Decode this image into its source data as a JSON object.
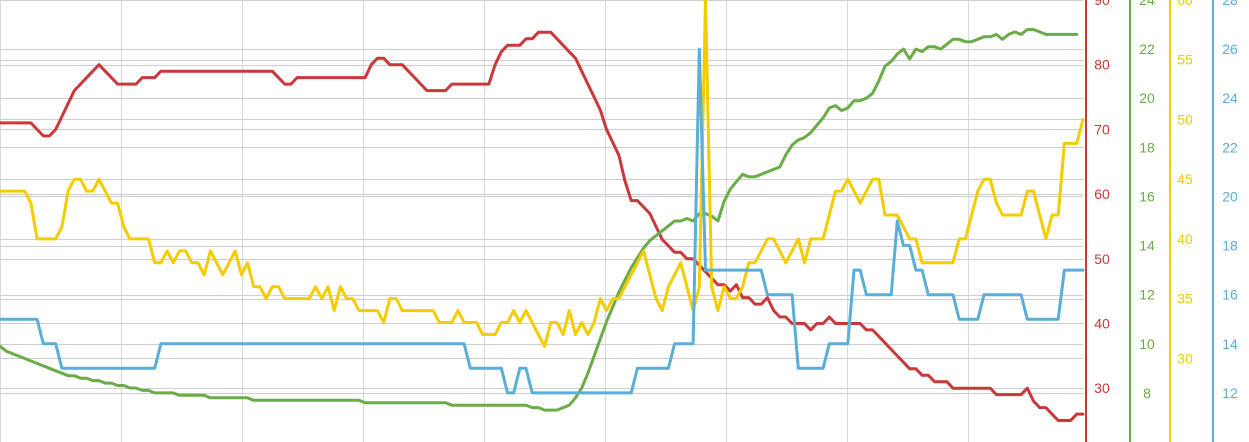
{
  "chart_data": {
    "type": "line",
    "title": "",
    "xlabel": "",
    "grid": true,
    "legend": "none",
    "x_count": 176,
    "axes": [
      {
        "id": "red",
        "color": "#c9383a",
        "ylim": [
          21.68,
          90
        ],
        "ticks": [
          30,
          40,
          50,
          60,
          70,
          80,
          90
        ]
      },
      {
        "id": "green",
        "color": "#6aac46",
        "ylim": [
          6,
          24
        ],
        "ticks": [
          8,
          10,
          12,
          14,
          16,
          18,
          20,
          22,
          24
        ]
      },
      {
        "id": "yellow",
        "color": "#f5cc00",
        "ylim": [
          23,
          60
        ],
        "ticks": [
          30,
          35,
          40,
          45,
          50,
          55,
          60
        ]
      },
      {
        "id": "blue",
        "color": "#5aaed8",
        "ylim": [
          10,
          28
        ],
        "ticks": [
          12,
          14,
          16,
          18,
          20,
          22,
          24,
          26,
          28
        ]
      }
    ],
    "series": [
      {
        "axis": "red",
        "color": "#c9383a",
        "values": [
          71,
          71,
          71,
          71,
          71,
          71,
          70,
          69,
          69,
          70,
          72,
          74,
          76,
          77,
          78,
          79,
          80,
          79,
          78,
          77,
          77,
          77,
          77,
          78,
          78,
          78,
          79,
          79,
          79,
          79,
          79,
          79,
          79,
          79,
          79,
          79,
          79,
          79,
          79,
          79,
          79,
          79,
          79,
          79,
          79,
          78,
          77,
          77,
          78,
          78,
          78,
          78,
          78,
          78,
          78,
          78,
          78,
          78,
          78,
          78,
          80,
          81,
          81,
          80,
          80,
          80,
          79,
          78,
          77,
          76,
          76,
          76,
          76,
          77,
          77,
          77,
          77,
          77,
          77,
          77,
          80,
          82,
          83,
          83,
          83,
          84,
          84,
          85,
          85,
          85,
          84,
          83,
          82,
          81,
          79,
          77,
          75,
          73,
          70,
          68,
          66,
          62,
          59,
          59,
          58,
          57,
          55,
          53,
          52,
          51,
          51,
          50,
          50,
          49,
          48,
          47,
          46,
          46,
          45,
          46,
          44,
          44,
          43,
          43,
          44,
          42,
          41,
          41,
          40,
          40,
          40,
          39,
          40,
          40,
          41,
          40,
          40,
          40,
          40,
          40,
          39,
          39,
          38,
          37,
          36,
          35,
          34,
          33,
          33,
          32,
          32,
          31,
          31,
          31,
          30,
          30,
          30,
          30,
          30,
          30,
          30,
          29,
          29,
          29,
          29,
          29,
          30,
          28,
          27,
          27,
          26,
          25,
          25,
          25,
          26,
          26
        ]
      },
      {
        "axis": "green",
        "color": "#6aac46",
        "values": [
          9.9,
          9.7,
          9.6,
          9.5,
          9.4,
          9.3,
          9.2,
          9.1,
          9.0,
          8.9,
          8.8,
          8.7,
          8.7,
          8.6,
          8.6,
          8.5,
          8.5,
          8.4,
          8.4,
          8.3,
          8.3,
          8.2,
          8.2,
          8.1,
          8.1,
          8.0,
          8.0,
          8.0,
          8.0,
          7.9,
          7.9,
          7.9,
          7.9,
          7.9,
          7.8,
          7.8,
          7.8,
          7.8,
          7.8,
          7.8,
          7.8,
          7.7,
          7.7,
          7.7,
          7.7,
          7.7,
          7.7,
          7.7,
          7.7,
          7.7,
          7.7,
          7.7,
          7.7,
          7.7,
          7.7,
          7.7,
          7.7,
          7.7,
          7.7,
          7.6,
          7.6,
          7.6,
          7.6,
          7.6,
          7.6,
          7.6,
          7.6,
          7.6,
          7.6,
          7.6,
          7.6,
          7.6,
          7.6,
          7.5,
          7.5,
          7.5,
          7.5,
          7.5,
          7.5,
          7.5,
          7.5,
          7.5,
          7.5,
          7.5,
          7.5,
          7.5,
          7.4,
          7.4,
          7.3,
          7.3,
          7.3,
          7.4,
          7.5,
          7.8,
          8.2,
          8.8,
          9.5,
          10.2,
          10.9,
          11.5,
          12.1,
          12.6,
          13.1,
          13.5,
          13.9,
          14.2,
          14.4,
          14.6,
          14.8,
          15.0,
          15.0,
          15.1,
          15.0,
          15.3,
          15.3,
          15.2,
          15.0,
          15.8,
          16.3,
          16.6,
          16.9,
          16.8,
          16.8,
          16.9,
          17.0,
          17.1,
          17.2,
          17.7,
          18.1,
          18.3,
          18.4,
          18.6,
          18.9,
          19.2,
          19.6,
          19.7,
          19.5,
          19.6,
          19.9,
          19.9,
          20.0,
          20.2,
          20.7,
          21.3,
          21.5,
          21.8,
          22.0,
          21.6,
          22.0,
          21.9,
          22.1,
          22.1,
          22.0,
          22.2,
          22.4,
          22.4,
          22.3,
          22.3,
          22.4,
          22.5,
          22.5,
          22.6,
          22.4,
          22.6,
          22.7,
          22.6,
          22.8,
          22.8,
          22.7,
          22.6,
          22.6,
          22.6,
          22.6,
          22.6,
          22.6
        ]
      },
      {
        "axis": "yellow",
        "color": "#f5cc00",
        "values": [
          44,
          44,
          44,
          44,
          44,
          43,
          40,
          40,
          40,
          40,
          41,
          44,
          45,
          45,
          44,
          44,
          45,
          44,
          43,
          43,
          41,
          40,
          40,
          40,
          40,
          38,
          38,
          39,
          38,
          39,
          39,
          38,
          38,
          37,
          39,
          38,
          37,
          38,
          39,
          37,
          38,
          36,
          36,
          35,
          36,
          36,
          35,
          35,
          35,
          35,
          35,
          36,
          35,
          36,
          34,
          36,
          35,
          35,
          34,
          34,
          34,
          34,
          33,
          35,
          35,
          34,
          34,
          34,
          34,
          34,
          34,
          33,
          33,
          33,
          34,
          33,
          33,
          33,
          32,
          32,
          32,
          33,
          33,
          34,
          33,
          34,
          33,
          32,
          31,
          33,
          33,
          32,
          34,
          32,
          33,
          32,
          33,
          35,
          34,
          35,
          35,
          36,
          37,
          38,
          39,
          37,
          35,
          34,
          36,
          37,
          38,
          36,
          34,
          36,
          60,
          36,
          34,
          36,
          35,
          35,
          36,
          38,
          38,
          39,
          40,
          40,
          39,
          38,
          39,
          40,
          38,
          40,
          40,
          40,
          42,
          44,
          44,
          45,
          44,
          43,
          44,
          45,
          45,
          42,
          42,
          42,
          41,
          40,
          40,
          38,
          38,
          38,
          38,
          38,
          38,
          40,
          40,
          42,
          44,
          45,
          45,
          43,
          42,
          42,
          42,
          42,
          44,
          44,
          42,
          40,
          42,
          42,
          48,
          48,
          48,
          50
        ]
      },
      {
        "axis": "blue",
        "color": "#5aaed8",
        "values": [
          15,
          15,
          15,
          15,
          15,
          15,
          15,
          14,
          14,
          14,
          13,
          13,
          13,
          13,
          13,
          13,
          13,
          13,
          13,
          13,
          13,
          13,
          13,
          13,
          13,
          13,
          14,
          14,
          14,
          14,
          14,
          14,
          14,
          14,
          14,
          14,
          14,
          14,
          14,
          14,
          14,
          14,
          14,
          14,
          14,
          14,
          14,
          14,
          14,
          14,
          14,
          14,
          14,
          14,
          14,
          14,
          14,
          14,
          14,
          14,
          14,
          14,
          14,
          14,
          14,
          14,
          14,
          14,
          14,
          14,
          14,
          14,
          14,
          14,
          14,
          14,
          13,
          13,
          13,
          13,
          13,
          13,
          12,
          12,
          13,
          13,
          12,
          12,
          12,
          12,
          12,
          12,
          12,
          12,
          12,
          12,
          12,
          12,
          12,
          12,
          12,
          12,
          12,
          13,
          13,
          13,
          13,
          13,
          13,
          14,
          14,
          14,
          14,
          26,
          17,
          17,
          17,
          17,
          17,
          17,
          17,
          17,
          17,
          17,
          16,
          16,
          16,
          16,
          16,
          13,
          13,
          13,
          13,
          13,
          14,
          14,
          14,
          14,
          17,
          17,
          16,
          16,
          16,
          16,
          16,
          19,
          18,
          18,
          17,
          17,
          16,
          16,
          16,
          16,
          16,
          15,
          15,
          15,
          15,
          16,
          16,
          16,
          16,
          16,
          16,
          16,
          15,
          15,
          15,
          15,
          15,
          15,
          17,
          17,
          17,
          17
        ]
      }
    ]
  }
}
